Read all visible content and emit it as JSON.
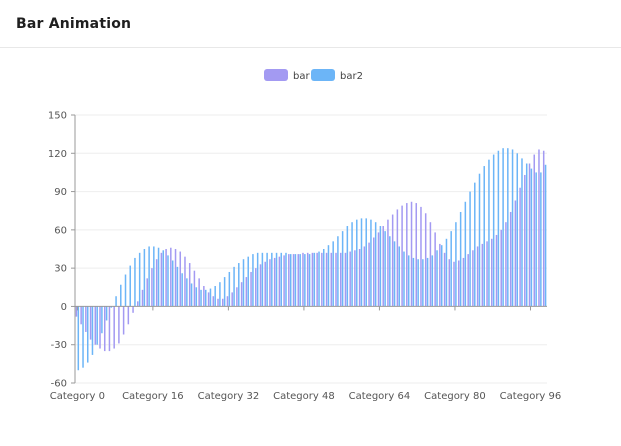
{
  "header": {
    "title": "Bar Animation"
  },
  "colors": {
    "bar": "#a39af2",
    "bar2": "#6cb5f7",
    "axis": "#999999",
    "grid": "#eeeeee"
  },
  "chart_data": {
    "type": "bar",
    "legend": {
      "placement": "top-center",
      "items": [
        "bar",
        "bar2"
      ]
    },
    "categories_count": 100,
    "category_prefix": "Category ",
    "x_tick_labels": [
      "Category 0",
      "Category 16",
      "Category 32",
      "Category 48",
      "Category 64",
      "Category 80",
      "Category 96"
    ],
    "x_tick_indices": [
      0,
      16,
      32,
      48,
      64,
      80,
      96
    ],
    "y_ticks": [
      150,
      120,
      90,
      60,
      30,
      0,
      -30,
      -60
    ],
    "ylim": [
      -60,
      150
    ],
    "grid": true,
    "series": [
      {
        "name": "bar",
        "values": [
          -8,
          -14,
          -20,
          -26,
          -30,
          -33,
          -35,
          -35,
          -33,
          -29,
          -22,
          -14,
          -5,
          4,
          13,
          22,
          30,
          37,
          42,
          45,
          46,
          45,
          43,
          39,
          34,
          28,
          22,
          16,
          11,
          8,
          6,
          6,
          8,
          11,
          15,
          19,
          23,
          27,
          30,
          33,
          35,
          37,
          38,
          39,
          40,
          41,
          41,
          41,
          42,
          42,
          42,
          42,
          42,
          42,
          42,
          42,
          42,
          42,
          43,
          44,
          45,
          47,
          50,
          54,
          58,
          63,
          68,
          72,
          76,
          79,
          81,
          82,
          81,
          78,
          73,
          66,
          58,
          49,
          42,
          37,
          35,
          36,
          38,
          41,
          44,
          47,
          49,
          51,
          53,
          56,
          60,
          66,
          74,
          83,
          93,
          103,
          112,
          119,
          123,
          122
        ]
      },
      {
        "name": "bar2",
        "values": [
          -50,
          -48,
          -44,
          -38,
          -30,
          -21,
          -11,
          -1,
          8,
          17,
          25,
          32,
          38,
          42,
          45,
          47,
          47,
          46,
          44,
          40,
          36,
          31,
          26,
          22,
          18,
          15,
          13,
          13,
          14,
          16,
          19,
          23,
          27,
          31,
          34,
          37,
          39,
          41,
          42,
          42,
          42,
          42,
          42,
          42,
          42,
          41,
          41,
          41,
          41,
          41,
          42,
          43,
          45,
          48,
          51,
          55,
          59,
          63,
          66,
          68,
          69,
          69,
          68,
          66,
          63,
          59,
          55,
          51,
          47,
          43,
          40,
          38,
          37,
          37,
          38,
          40,
          44,
          48,
          53,
          59,
          66,
          74,
          82,
          90,
          97,
          104,
          110,
          115,
          119,
          122,
          124,
          124,
          123,
          120,
          116,
          112,
          108,
          105,
          105,
          111
        ]
      }
    ]
  }
}
